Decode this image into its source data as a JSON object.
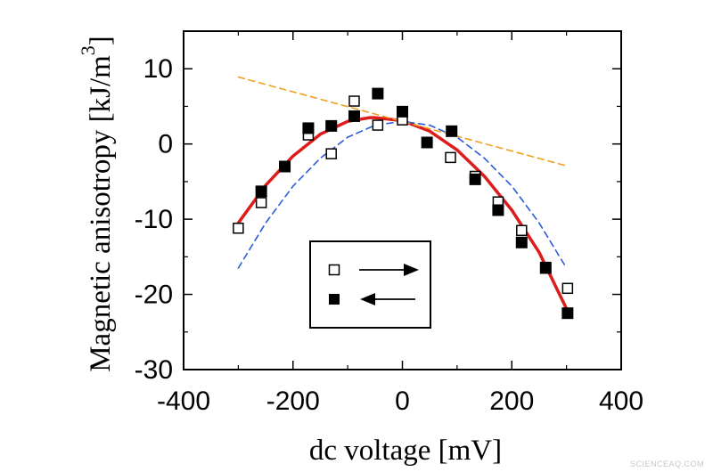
{
  "chart_data": {
    "type": "scatter",
    "xlabel": "dc voltage  [mV]",
    "ylabel": "Magnetic anisotropy  [kJ/m",
    "ylabel_superscript": "3",
    "ylabel_close": "]",
    "xlim": [
      -400,
      400
    ],
    "ylim": [
      -30,
      15
    ],
    "xticks": [
      -400,
      -200,
      0,
      200,
      400
    ],
    "xtick_labels": [
      "-400",
      "-200",
      "0",
      "200",
      "400"
    ],
    "yticks": [
      -30,
      -20,
      -10,
      0,
      10
    ],
    "ytick_labels": [
      "-30",
      "-20",
      "-10",
      "0",
      "10"
    ],
    "series": [
      {
        "name": "sweep up (open squares, arrow right)",
        "marker": "open-square",
        "points": [
          [
            -300,
            -11.2
          ],
          [
            -258,
            -7.8
          ],
          [
            -172,
            1.2
          ],
          [
            -130,
            -1.3
          ],
          [
            -88,
            5.7
          ],
          [
            -45,
            2.5
          ],
          [
            0,
            3.2
          ],
          [
            88,
            -1.8
          ],
          [
            133,
            -4.3
          ],
          [
            175,
            -7.7
          ],
          [
            218,
            -11.5
          ],
          [
            262,
            -16.4
          ],
          [
            302,
            -19.2
          ]
        ]
      },
      {
        "name": "sweep down (filled squares, arrow left)",
        "marker": "filled-square",
        "points": [
          [
            -258,
            -6.3
          ],
          [
            -215,
            -3.0
          ],
          [
            -172,
            2.1
          ],
          [
            -130,
            2.4
          ],
          [
            -88,
            3.7
          ],
          [
            -45,
            6.7
          ],
          [
            0,
            4.3
          ],
          [
            45,
            0.2
          ],
          [
            90,
            1.7
          ],
          [
            133,
            -4.7
          ],
          [
            175,
            -8.8
          ],
          [
            218,
            -13.1
          ],
          [
            262,
            -16.5
          ],
          [
            302,
            -22.5
          ]
        ]
      }
    ],
    "curves": [
      {
        "name": "fit (solid red)",
        "color": "#dd1c1c",
        "style": "solid",
        "points": [
          [
            -300,
            -10.5
          ],
          [
            -250,
            -5.5
          ],
          [
            -200,
            -1.6
          ],
          [
            -150,
            1.3
          ],
          [
            -100,
            3.0
          ],
          [
            -60,
            3.5
          ],
          [
            -50,
            3.5
          ],
          [
            0,
            3.1
          ],
          [
            50,
            1.7
          ],
          [
            100,
            -0.8
          ],
          [
            150,
            -4.3
          ],
          [
            200,
            -8.8
          ],
          [
            250,
            -14.4
          ],
          [
            300,
            -21.9
          ]
        ]
      },
      {
        "name": "quadratic term (dashed blue)",
        "color": "#2a5bd7",
        "style": "dashed",
        "points": [
          [
            -300,
            -16.5
          ],
          [
            -250,
            -10.5
          ],
          [
            -200,
            -5.6
          ],
          [
            -150,
            -1.9
          ],
          [
            -100,
            0.9
          ],
          [
            -50,
            2.5
          ],
          [
            0,
            3.0
          ],
          [
            50,
            2.5
          ],
          [
            100,
            0.9
          ],
          [
            150,
            -1.9
          ],
          [
            200,
            -5.6
          ],
          [
            250,
            -10.5
          ],
          [
            300,
            -16.5
          ]
        ]
      },
      {
        "name": "linear term (dashed orange)",
        "color": "#f0a020",
        "style": "dashed",
        "points": [
          [
            -300,
            8.9
          ],
          [
            300,
            -2.9
          ]
        ]
      }
    ],
    "legend": {
      "position": "center-bottom",
      "entries": [
        {
          "marker": "open-square",
          "arrow": "right"
        },
        {
          "marker": "filled-square",
          "arrow": "left"
        }
      ]
    }
  },
  "watermark": "SCIENCEAQ.COM"
}
